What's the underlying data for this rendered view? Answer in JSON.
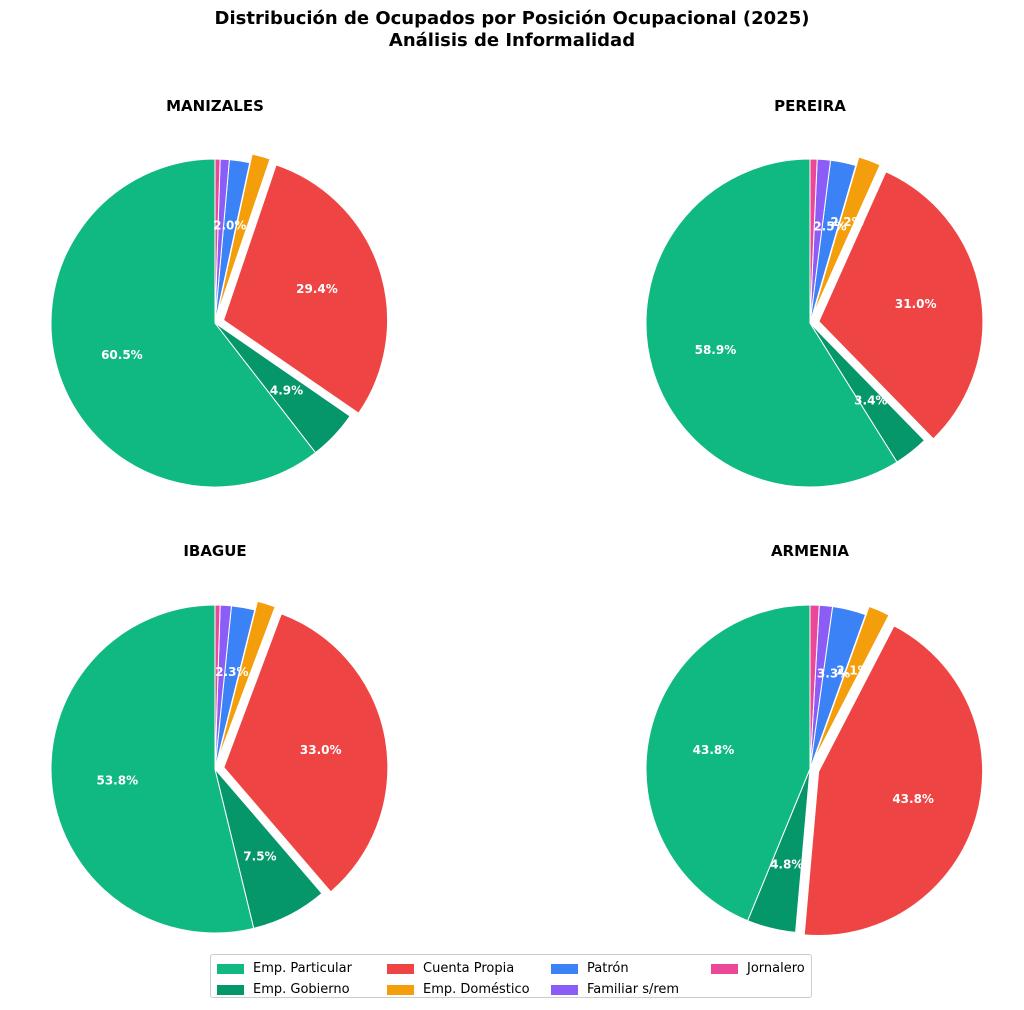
{
  "title_line1": "Distribución de Ocupados por Posición Ocupacional (2025)",
  "title_line2": "Análisis de Informalidad",
  "categories": [
    "Emp. Particular",
    "Emp. Gobierno",
    "Cuenta Propia",
    "Emp. Doméstico",
    "Patrón",
    "Familiar s/rem",
    "Jornalero"
  ],
  "colors": [
    "#10b981",
    "#059669",
    "#ef4444",
    "#f59e0b",
    "#3b82f6",
    "#8b5cf6",
    "#ec4899"
  ],
  "chart_data": [
    {
      "type": "pie",
      "title": "MANIZALES",
      "categories": [
        "Emp. Particular",
        "Emp. Gobierno",
        "Cuenta Propia",
        "Emp. Doméstico",
        "Patrón",
        "Familiar s/rem",
        "Jornalero"
      ],
      "values": [
        60.5,
        4.9,
        29.4,
        1.8,
        2.0,
        0.9,
        0.5
      ],
      "labels": [
        "60.5%",
        "4.9%",
        "29.4%",
        "",
        "2.0%",
        "",
        ""
      ],
      "exploded": [
        "Cuenta Propia",
        "Emp. Doméstico"
      ]
    },
    {
      "type": "pie",
      "title": "PEREIRA",
      "categories": [
        "Emp. Particular",
        "Emp. Gobierno",
        "Cuenta Propia",
        "Emp. Doméstico",
        "Patrón",
        "Familiar s/rem",
        "Jornalero"
      ],
      "values": [
        58.9,
        3.4,
        31.0,
        2.2,
        2.5,
        1.3,
        0.7
      ],
      "labels": [
        "58.9%",
        "3.4%",
        "31.0%",
        "2.2%",
        "2.5%",
        "",
        ""
      ],
      "exploded": [
        "Cuenta Propia",
        "Emp. Doméstico"
      ]
    },
    {
      "type": "pie",
      "title": "IBAGUE",
      "categories": [
        "Emp. Particular",
        "Emp. Gobierno",
        "Cuenta Propia",
        "Emp. Doméstico",
        "Patrón",
        "Familiar s/rem",
        "Jornalero"
      ],
      "values": [
        53.8,
        7.5,
        33.0,
        1.8,
        2.3,
        1.1,
        0.5
      ],
      "labels": [
        "53.8%",
        "7.5%",
        "33.0%",
        "",
        "2.3%",
        "",
        ""
      ],
      "exploded": [
        "Cuenta Propia",
        "Emp. Doméstico"
      ]
    },
    {
      "type": "pie",
      "title": "ARMENIA",
      "categories": [
        "Emp. Particular",
        "Emp. Gobierno",
        "Cuenta Propia",
        "Emp. Doméstico",
        "Patrón",
        "Familiar s/rem",
        "Jornalero"
      ],
      "values": [
        43.8,
        4.8,
        43.8,
        2.1,
        3.3,
        1.3,
        0.9
      ],
      "labels": [
        "43.8%",
        "4.8%",
        "43.8%",
        "2.1%",
        "3.3%",
        "",
        ""
      ],
      "exploded": [
        "Cuenta Propia",
        "Emp. Doméstico"
      ]
    }
  ],
  "legend": [
    {
      "label": "Emp. Particular",
      "color": "#10b981"
    },
    {
      "label": "Cuenta Propia",
      "color": "#ef4444"
    },
    {
      "label": "Patrón",
      "color": "#3b82f6"
    },
    {
      "label": "Jornalero",
      "color": "#ec4899"
    },
    {
      "label": "Emp. Gobierno",
      "color": "#059669"
    },
    {
      "label": "Emp. Doméstico",
      "color": "#f59e0b"
    },
    {
      "label": "Familiar s/rem",
      "color": "#8b5cf6"
    }
  ]
}
